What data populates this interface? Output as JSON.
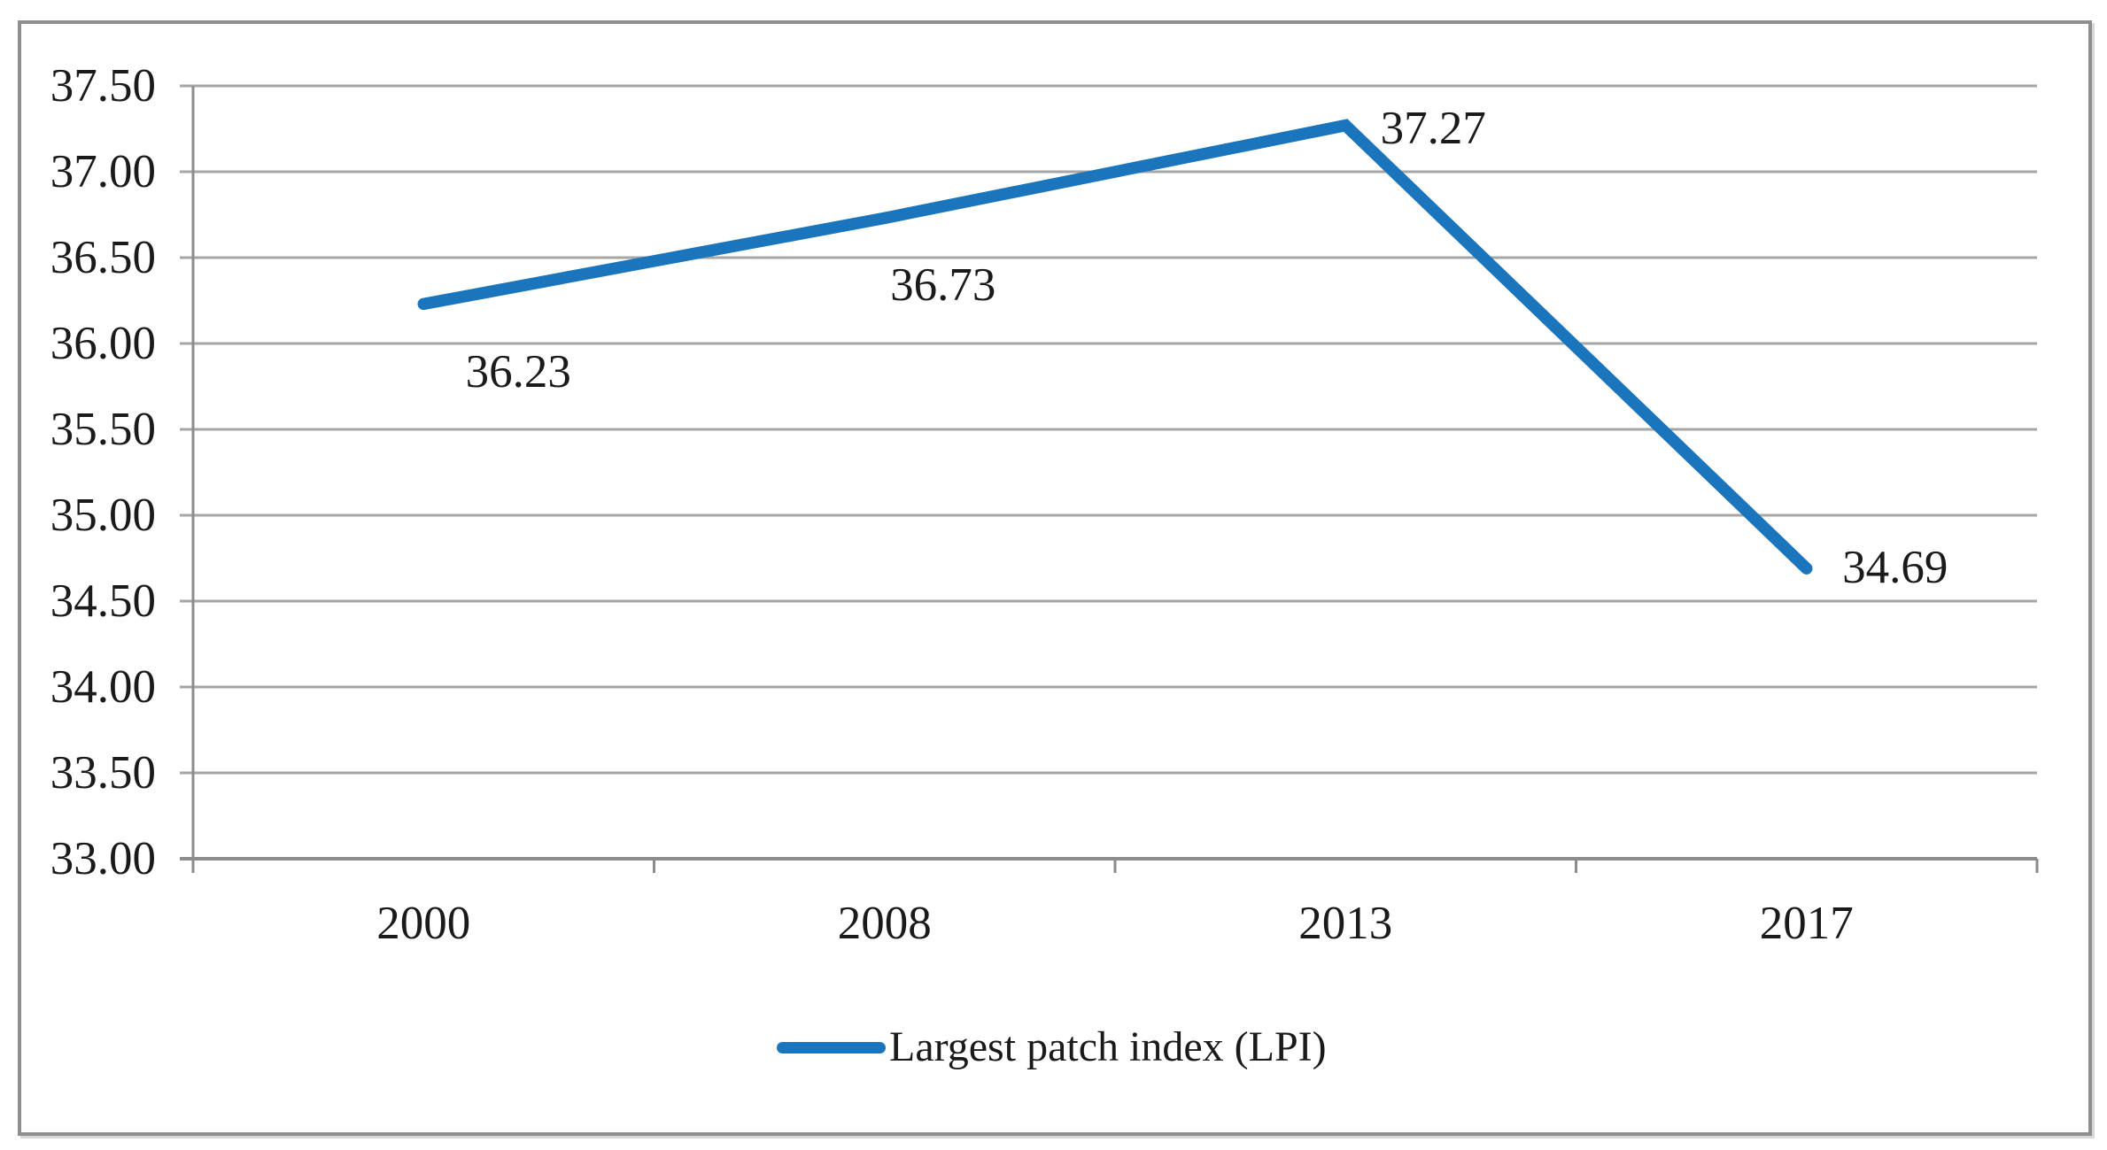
{
  "chart_data": {
    "type": "line",
    "title": "",
    "categories": [
      "2000",
      "2008",
      "2013",
      "2017"
    ],
    "series": [
      {
        "name": "Largest patch index (LPI)",
        "values": [
          36.23,
          36.73,
          37.27,
          34.69
        ]
      }
    ],
    "data_labels": [
      "36.23",
      "36.73",
      "37.27",
      "34.69"
    ],
    "y_ticks": [
      "37.50",
      "37.00",
      "36.50",
      "36.00",
      "35.50",
      "35.00",
      "34.50",
      "34.00",
      "33.50",
      "33.00"
    ],
    "ylim": [
      33.0,
      37.5
    ],
    "xlabel": "",
    "ylabel": "",
    "grid": "horizontal",
    "legend_position": "bottom",
    "colors": {
      "line": "#1b75bc",
      "grid": "#a6a6a6",
      "axis": "#8c8c8c",
      "text": "#1a1a1a",
      "frame_border": "#8f8f8f",
      "background": "#ffffff"
    }
  },
  "legend": {
    "label": "Largest patch index (LPI)"
  }
}
